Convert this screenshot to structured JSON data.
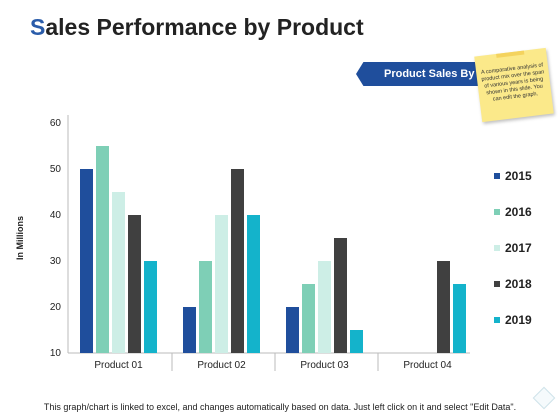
{
  "page": {
    "title_initial": "S",
    "title_rest": "ales Performance by Product",
    "banner": "Product Sales By",
    "sticky_note": "A comparative analysis of product mix over the span of various years is being shown in this slide. You can edit the graph.",
    "footer": "This graph/chart is linked to excel, and changes automatically based on data. Just left click on it and select \"Edit Data\"."
  },
  "chart_data": {
    "type": "bar",
    "title": "",
    "xlabel": "",
    "ylabel": "In Millions",
    "ylim": [
      10,
      60
    ],
    "yticks": [
      10,
      20,
      30,
      40,
      50,
      60
    ],
    "grid": false,
    "legend_position": "right",
    "categories": [
      "Product 01",
      "Product 02",
      "Product 03",
      "Product 04"
    ],
    "series": [
      {
        "name": "2015",
        "color": "#1f4e9c",
        "values": [
          50,
          20,
          20,
          null
        ]
      },
      {
        "name": "2016",
        "color": "#7ecfb6",
        "values": [
          55,
          30,
          25,
          null
        ]
      },
      {
        "name": "2017",
        "color": "#cdeee6",
        "values": [
          45,
          40,
          30,
          null
        ]
      },
      {
        "name": "2018",
        "color": "#404040",
        "values": [
          40,
          50,
          35,
          30
        ]
      },
      {
        "name": "2019",
        "color": "#14b3cb",
        "values": [
          30,
          40,
          15,
          25
        ]
      }
    ]
  }
}
